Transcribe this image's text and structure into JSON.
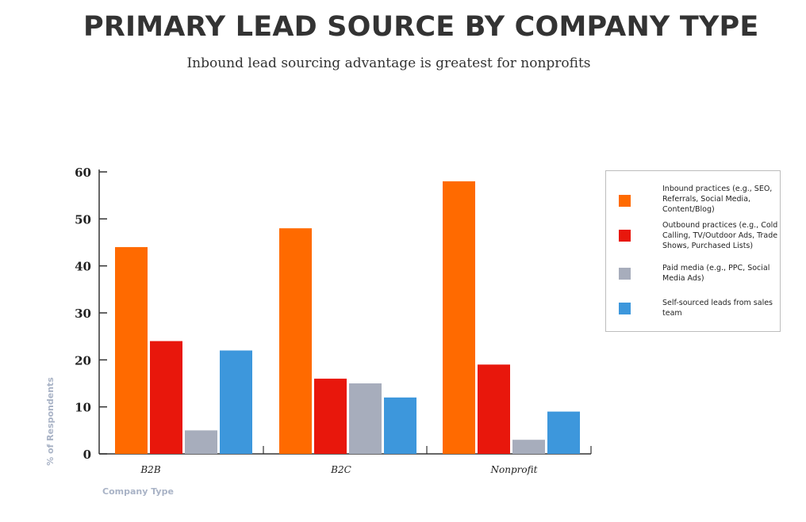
{
  "title": "PRIMARY LEAD SOURCE BY COMPANY TYPE",
  "subtitle": "Inbound lead sourcing advantage is greatest for nonprofits",
  "colors": {
    "inbound": "#ff6a00",
    "outbound": "#e8170c",
    "paid": "#a7adbc",
    "self": "#3d97dc",
    "axis_label": "#a9b3c6",
    "tick": "#222222"
  },
  "chart_data": {
    "type": "bar",
    "title": "PRIMARY LEAD SOURCE BY COMPANY TYPE",
    "subtitle": "Inbound lead sourcing advantage is greatest for nonprofits",
    "xlabel": "Company Type",
    "ylabel": "% of Respondents",
    "categories": [
      "B2B",
      "B2C",
      "Nonprofit"
    ],
    "yticks": [
      0,
      10,
      20,
      30,
      40,
      50,
      60
    ],
    "ylim": [
      0,
      60
    ],
    "grid": false,
    "legend_position": "right",
    "series": [
      {
        "name": "Inbound practices (e.g., SEO, Referrals, Social Media, Content/Blog)",
        "key": "inbound",
        "values": [
          44,
          48,
          58
        ]
      },
      {
        "name": "Outbound practices (e.g., Cold Calling, TV/Outdoor Ads, Trade Shows, Purchased Lists)",
        "key": "outbound",
        "values": [
          24,
          16,
          19
        ]
      },
      {
        "name": "Paid media (e.g., PPC, Social Media Ads)",
        "key": "paid",
        "values": [
          5,
          15,
          3
        ]
      },
      {
        "name": "Self-sourced leads from sales team",
        "key": "self",
        "values": [
          22,
          12,
          9
        ]
      }
    ]
  },
  "legend": {
    "items": [
      {
        "label": "Inbound practices (e.g., SEO, Referrals, Social Media, Content/Blog)",
        "key": "inbound"
      },
      {
        "label": "Outbound practices (e.g., Cold Calling, TV/Outdoor Ads, Trade Shows, Purchased Lists)",
        "key": "outbound"
      },
      {
        "label": "Paid media (e.g., PPC, Social Media Ads)",
        "key": "paid"
      },
      {
        "label": "Self-sourced leads from sales team",
        "key": "self"
      }
    ]
  }
}
